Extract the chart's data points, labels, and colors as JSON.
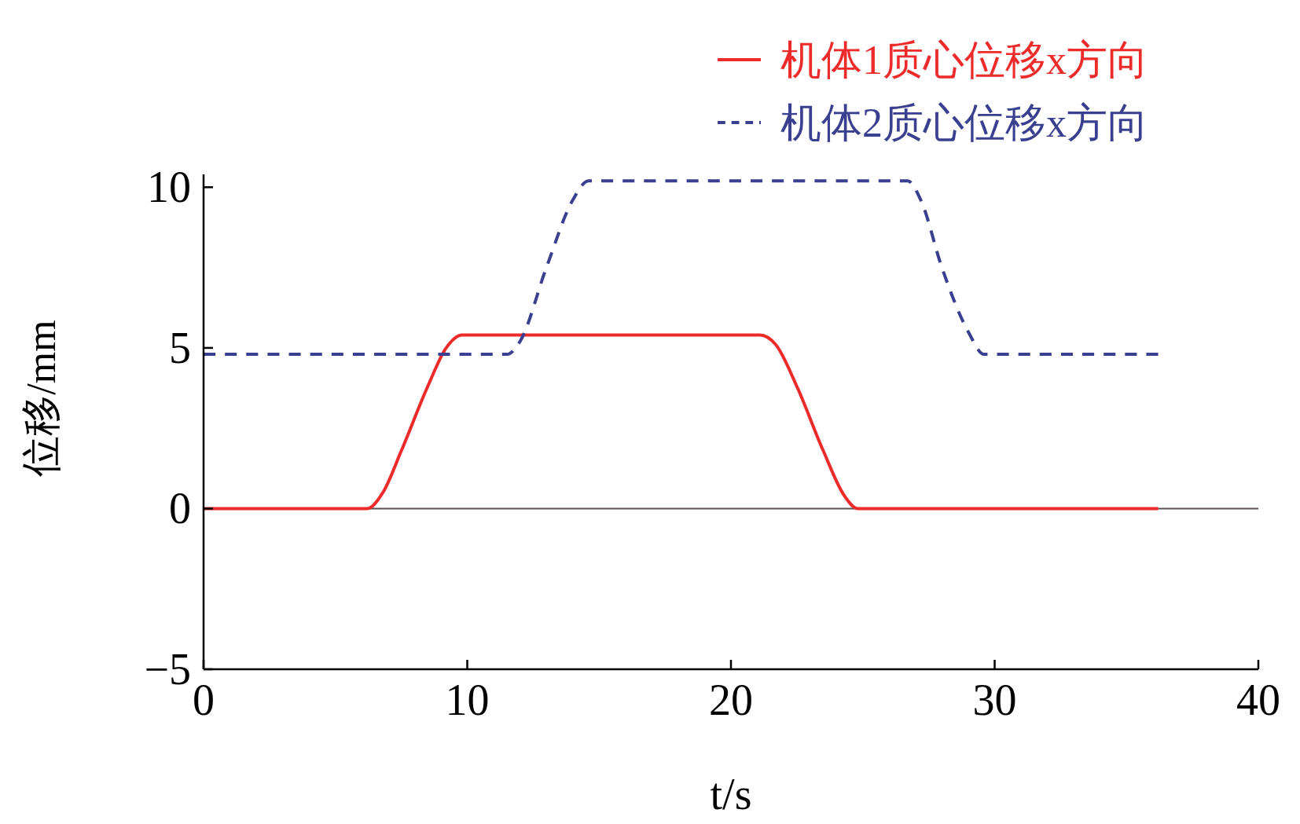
{
  "chart_data": {
    "type": "line",
    "xlabel": "t/s",
    "ylabel": "位移/mm",
    "xlim": [
      0,
      40
    ],
    "ylim": [
      -5,
      10.4
    ],
    "xticks": [
      0,
      10,
      20,
      30,
      40
    ],
    "yticks": [
      {
        "value": -5,
        "label": "−5"
      },
      0,
      5,
      10
    ],
    "grid": false,
    "legend": "top right",
    "ref_lines": [
      {
        "axis": "y",
        "value": 0,
        "color": "#5a5050"
      }
    ],
    "series": [
      {
        "name": "机体1质心位移x方向",
        "color": "#ee2b2b",
        "line_style": "solid",
        "x": [
          0,
          6.2,
          6.8,
          7.5,
          8.5,
          9.2,
          9.8,
          21.1,
          21.7,
          22.5,
          23.5,
          24.3,
          24.8,
          36.2
        ],
        "values": [
          0,
          0,
          0.5,
          1.8,
          3.8,
          5.0,
          5.4,
          5.4,
          5.1,
          3.8,
          1.8,
          0.4,
          0,
          0
        ]
      },
      {
        "name": "机体2质心位移x方向",
        "color": "#3a3f8f",
        "line_style": "dashed",
        "x": [
          0,
          11.5,
          12,
          13,
          14,
          14.6,
          26.7,
          27.2,
          28,
          29,
          29.6,
          36.2
        ],
        "values": [
          4.8,
          4.8,
          5.2,
          7.5,
          9.6,
          10.2,
          10.2,
          9.6,
          7.5,
          5.5,
          4.8,
          4.8
        ]
      }
    ]
  }
}
